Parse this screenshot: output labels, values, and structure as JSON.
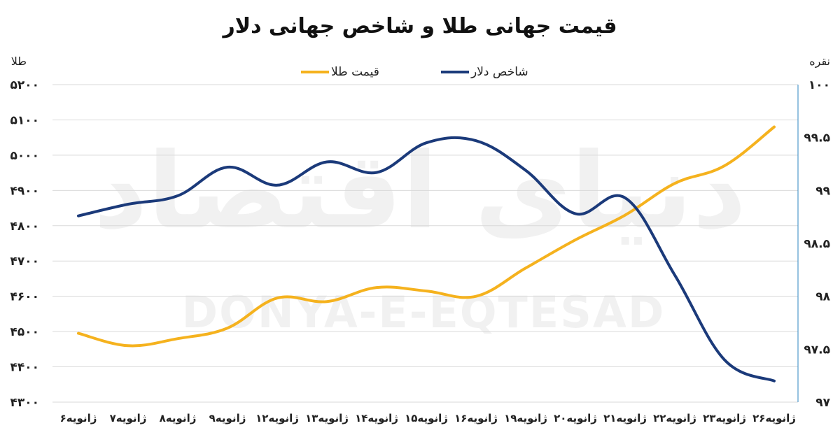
{
  "chart_data": {
    "type": "line",
    "title": "قیمت جهانی طلا و شاخص جهانی دلار",
    "y_left_label": "طلا",
    "y_right_label": "نقره",
    "watermark": "DONYA-E-EQTESAD",
    "watermark_fa": "دنیای اقتصاد",
    "categories": [
      "۶ژانویه",
      "۷ژانویه",
      "۸ژانویه",
      "۹ژانویه",
      "۱۲ژانویه",
      "۱۳ژانویه",
      "۱۴ژانویه",
      "۱۵ژانویه",
      "۱۶ژانویه",
      "۱۹ژانویه",
      "۲۰ژانویه",
      "۲۱ژانویه",
      "۲۲ژانویه",
      "۲۳ژانویه",
      "۲۶ژانویه"
    ],
    "y_left": {
      "min": 4300,
      "max": 5200,
      "step": 100,
      "ticks": [
        "۴۳۰۰",
        "۴۴۰۰",
        "۴۵۰۰",
        "۴۶۰۰",
        "۴۷۰۰",
        "۴۸۰۰",
        "۴۹۰۰",
        "۵۰۰۰",
        "۵۱۰۰",
        "۵۲۰۰"
      ]
    },
    "y_right": {
      "min": 97,
      "max": 100,
      "step": 0.5,
      "ticks": [
        "۹۷",
        "۹۷.۵",
        "۹۸",
        "۹۸.۵",
        "۹۹",
        "۹۹.۵",
        "۱۰۰"
      ]
    },
    "grid": true,
    "legend_position": "top-center",
    "series": [
      {
        "name": "قیمت طلا",
        "axis": "left",
        "color": "#F5B21E",
        "values": [
          4495,
          4460,
          4480,
          4510,
          4595,
          4585,
          4625,
          4615,
          4600,
          4680,
          4760,
          4830,
          4920,
          4970,
          5080
        ]
      },
      {
        "name": "شاخص دلار",
        "axis": "right",
        "color": "#1B3A7A",
        "values": [
          98.76,
          98.87,
          98.95,
          99.22,
          99.05,
          99.27,
          99.17,
          99.45,
          99.47,
          99.19,
          98.78,
          98.93,
          98.2,
          97.4,
          97.2
        ]
      }
    ]
  }
}
